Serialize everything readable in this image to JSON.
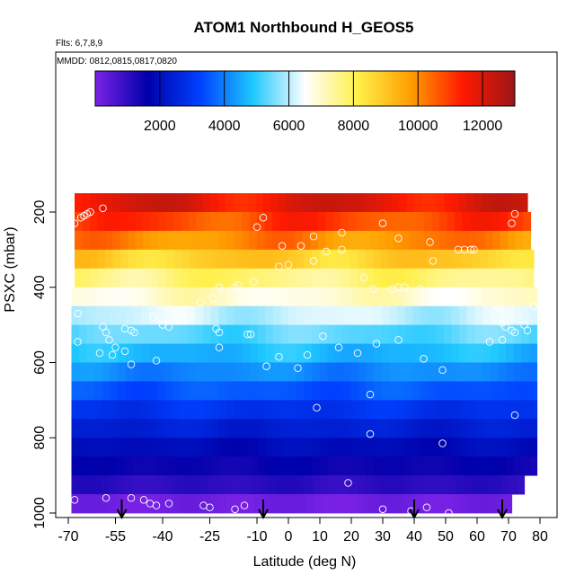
{
  "chart_data": {
    "type": "heatmap",
    "title": "ATOM1 Northbound H_GEOS5",
    "annotations": [
      "Flts: 6,7,8,9",
      "MMDD: 0812,0815,0817,0820"
    ],
    "xlabel": "Latitude (deg N)",
    "ylabel": "PSXC (mbar)",
    "xlim": [
      -70,
      80
    ],
    "ylim": [
      1000,
      140
    ],
    "y_inverted": true,
    "x_ticks": [
      -70,
      -55,
      -40,
      -25,
      -10,
      0,
      10,
      20,
      30,
      40,
      50,
      60,
      70,
      80
    ],
    "x_ticks_labeled": [
      -70,
      -55,
      -40,
      -25,
      -10,
      0,
      10,
      20,
      30,
      40,
      50,
      60,
      70,
      80
    ],
    "y_ticks": [
      200,
      400,
      600,
      800,
      1000
    ],
    "y_ticks_labeled": [
      200,
      400,
      600,
      800,
      1000
    ],
    "grid": false,
    "colorbar": {
      "placement": "top",
      "range": [
        0,
        13000
      ],
      "ticks": [
        2000,
        4000,
        6000,
        8000,
        10000,
        12000
      ],
      "colors": [
        "#7b22e6",
        "#0000aa",
        "#0040ff",
        "#1ec8ff",
        "#ffffff",
        "#fff04a",
        "#ffa000",
        "#ff1a00",
        "#9c1616"
      ]
    },
    "pressure_levels": [
      175,
      225,
      275,
      325,
      375,
      425,
      475,
      525,
      575,
      625,
      675,
      725,
      775,
      825,
      875,
      925,
      975
    ],
    "level_values": [
      11800,
      10900,
      10000,
      8800,
      7700,
      6900,
      6100,
      5300,
      4700,
      4100,
      3500,
      2900,
      2400,
      1900,
      1500,
      1050,
      150
    ],
    "level_lat_range": [
      [
        -68,
        76
      ],
      [
        -68,
        77
      ],
      [
        -68,
        77
      ],
      [
        -68,
        78
      ],
      [
        -68,
        78
      ],
      [
        -69,
        79
      ],
      [
        -69,
        79
      ],
      [
        -69,
        79
      ],
      [
        -69,
        79
      ],
      [
        -69,
        79
      ],
      [
        -69,
        79
      ],
      [
        -69,
        79
      ],
      [
        -69,
        79
      ],
      [
        -69,
        79
      ],
      [
        -69,
        79
      ],
      [
        -69,
        75
      ],
      [
        -69,
        71
      ]
    ],
    "observations_lat": [
      -68,
      -66,
      -65,
      -64,
      -63,
      -59,
      -68,
      -58,
      -50,
      -46,
      -44,
      -42,
      -38,
      -27,
      -25,
      -17,
      -14,
      -10,
      -8,
      -2,
      4,
      8,
      17,
      30,
      35,
      45,
      59,
      71,
      72,
      -67,
      -67,
      -59,
      -58,
      -55,
      -52,
      -49,
      -43,
      -35,
      -33,
      -32,
      -28,
      -24,
      -22,
      -17,
      -16,
      -11,
      -3,
      0,
      8,
      12,
      17,
      24,
      27,
      33,
      35,
      37,
      42,
      46,
      54,
      56,
      58,
      67,
      68,
      69,
      71,
      72,
      75,
      76,
      78,
      -57,
      -55,
      -50,
      -42,
      -22,
      -13,
      -7,
      6,
      11,
      16,
      22,
      28,
      35,
      43,
      49,
      26,
      64,
      68,
      72,
      49,
      -60,
      -56,
      -52,
      -50,
      -40,
      -38,
      -23,
      -22,
      -12,
      -3,
      3,
      9,
      19,
      26,
      30,
      39,
      44,
      51
    ],
    "observations_p": [
      230,
      215,
      210,
      205,
      200,
      190,
      965,
      960,
      960,
      965,
      975,
      980,
      975,
      980,
      985,
      990,
      980,
      240,
      215,
      290,
      290,
      265,
      255,
      230,
      270,
      280,
      300,
      230,
      205,
      470,
      545,
      505,
      520,
      420,
      510,
      520,
      480,
      480,
      460,
      480,
      440,
      430,
      400,
      400,
      395,
      385,
      345,
      340,
      330,
      305,
      300,
      375,
      405,
      405,
      400,
      400,
      405,
      330,
      300,
      300,
      300,
      455,
      495,
      505,
      515,
      520,
      500,
      515,
      450,
      540,
      560,
      605,
      595,
      560,
      525,
      610,
      580,
      530,
      560,
      575,
      550,
      540,
      590,
      620,
      685,
      545,
      540,
      740,
      815,
      575,
      580,
      570,
      515,
      500,
      505,
      510,
      520,
      525,
      585,
      615,
      720,
      920,
      790,
      990,
      995,
      985,
      1000
    ],
    "arrow_lats": [
      -53,
      -8,
      40,
      68
    ]
  }
}
